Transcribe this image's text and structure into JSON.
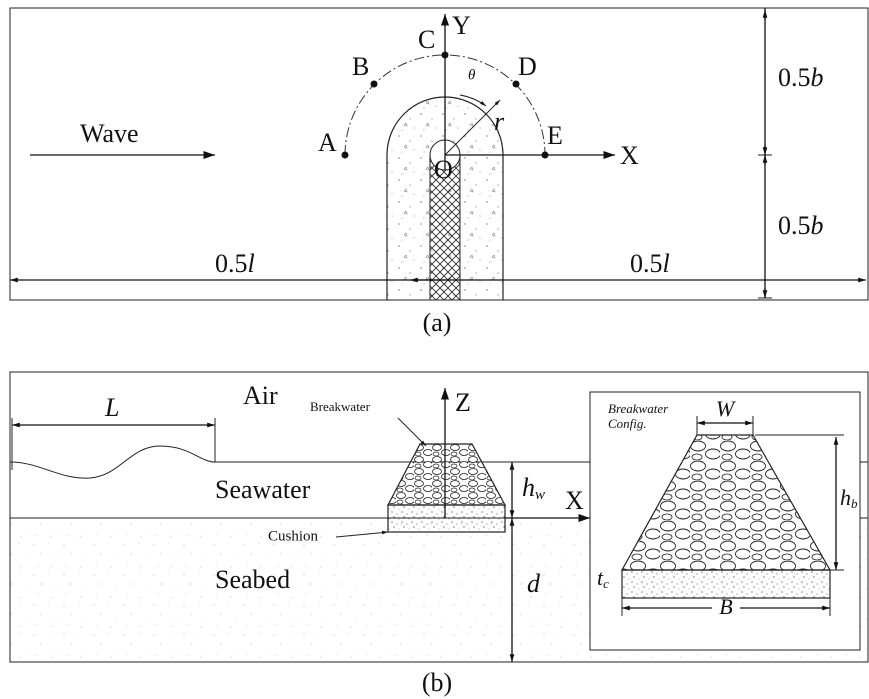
{
  "panel_a": {
    "label": "(a)",
    "wave": "Wave",
    "points": {
      "A": "A",
      "B": "B",
      "C": "C",
      "D": "D",
      "E": "E"
    },
    "origin": "O",
    "x_axis": "X",
    "y_axis": "Y",
    "theta": "θ",
    "radius": "r",
    "half_b": [
      {
        "number": "0.5",
        "symbol": "b"
      },
      {
        "number": "0.5",
        "symbol": "b"
      }
    ],
    "half_l": [
      {
        "number": "0.5",
        "symbol": "l"
      },
      {
        "number": "0.5",
        "symbol": "l"
      }
    ]
  },
  "panel_b": {
    "label": "(b)",
    "air": "Air",
    "breakwater": "Breakwater",
    "z_axis": "Z",
    "x_axis": "X",
    "seawater": "Seawater",
    "seabed": "Seabed",
    "cushion": "Cushion",
    "wavelength": "L",
    "water_depth": {
      "base": "h",
      "sub": "w"
    },
    "seabed_depth": "d",
    "inset": {
      "title": [
        "Breakwater",
        "Config."
      ],
      "top_width": "W",
      "height": {
        "base": "h",
        "sub": "b"
      },
      "cushion_thickness": {
        "base": "t",
        "sub": "c"
      },
      "bottom_width": "B"
    }
  }
}
